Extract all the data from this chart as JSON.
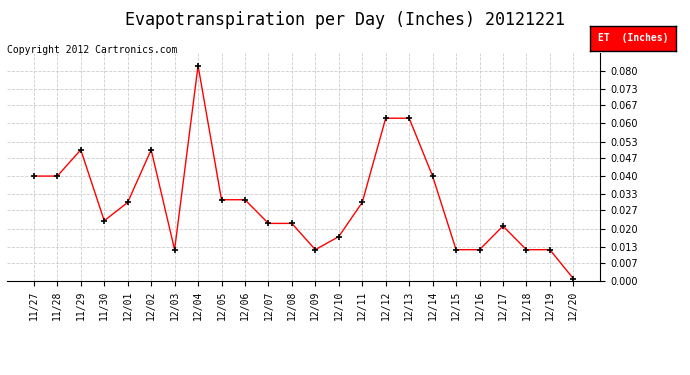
{
  "title": "Evapotranspiration per Day (Inches) 20121221",
  "copyright": "Copyright 2012 Cartronics.com",
  "legend_label": "ET  (Inches)",
  "legend_bg": "#FF0000",
  "legend_text_color": "#FFFFFF",
  "dates": [
    "11/27",
    "11/28",
    "11/29",
    "11/30",
    "12/01",
    "12/02",
    "12/03",
    "12/04",
    "12/05",
    "12/06",
    "12/07",
    "12/08",
    "12/09",
    "12/10",
    "12/11",
    "12/12",
    "12/13",
    "12/14",
    "12/15",
    "12/16",
    "12/17",
    "12/18",
    "12/19",
    "12/20"
  ],
  "values": [
    0.04,
    0.04,
    0.05,
    0.023,
    0.03,
    0.05,
    0.012,
    0.082,
    0.031,
    0.031,
    0.022,
    0.022,
    0.012,
    0.017,
    0.03,
    0.062,
    0.062,
    0.04,
    0.012,
    0.012,
    0.021,
    0.012,
    0.012,
    0.001
  ],
  "line_color": "#FF0000",
  "marker_color": "#000000",
  "ylim": [
    0.0,
    0.087
  ],
  "yticks": [
    0.0,
    0.007,
    0.013,
    0.02,
    0.027,
    0.033,
    0.04,
    0.047,
    0.053,
    0.06,
    0.067,
    0.073,
    0.08
  ],
  "background_color": "#FFFFFF",
  "grid_color": "#CCCCCC",
  "title_fontsize": 12,
  "copyright_fontsize": 7,
  "tick_fontsize": 7
}
